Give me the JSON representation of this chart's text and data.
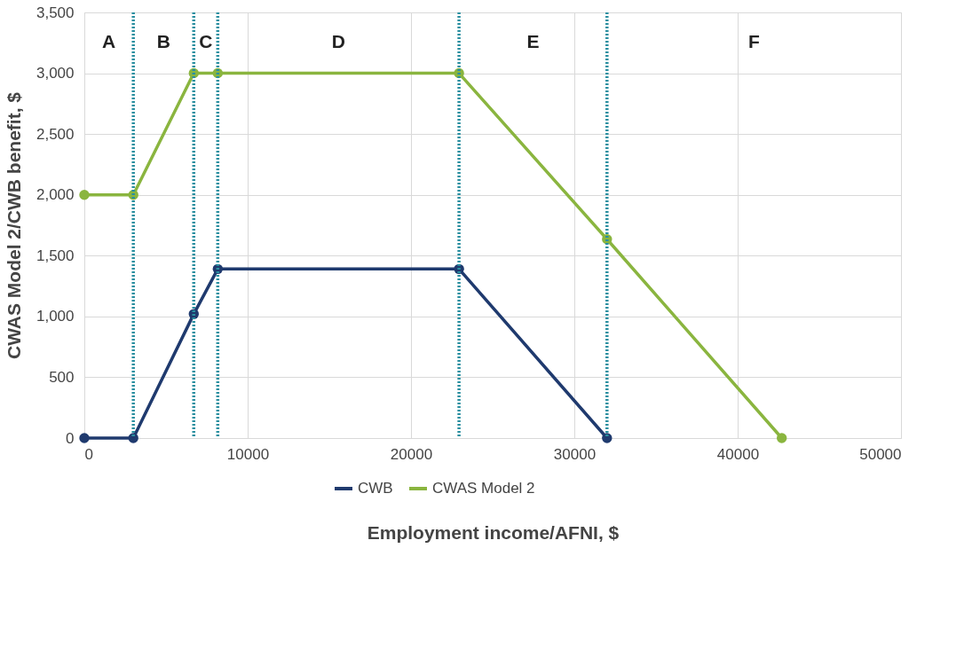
{
  "chart_data": {
    "type": "line",
    "xlabel": "Employment income/AFNI, $",
    "ylabel": "CWAS Model 2/CWB benefit, $",
    "series": [
      {
        "name": "CWB",
        "color": "#1f3a6e",
        "x": [
          0,
          3000,
          6700,
          8170,
          22940,
          32000
        ],
        "values": [
          0,
          0,
          1020,
          1390,
          1390,
          0
        ]
      },
      {
        "name": "CWAS Model 2",
        "color": "#8ab53f",
        "x": [
          0,
          3000,
          6700,
          8170,
          22940,
          32000,
          42700
        ],
        "values": [
          2000,
          2000,
          3000,
          3000,
          3000,
          1635,
          0
        ]
      }
    ],
    "xlim": [
      0,
      50000
    ],
    "xticks": [
      0,
      10000,
      20000,
      30000,
      40000,
      50000
    ],
    "ylim": [
      0,
      3500
    ],
    "yticks": [
      {
        "value": 0,
        "label": "0"
      },
      {
        "value": 500,
        "label": "500"
      },
      {
        "value": 1000,
        "label": "1,000"
      },
      {
        "value": 1500,
        "label": "1,500"
      },
      {
        "value": 2000,
        "label": "2,000"
      },
      {
        "value": 2500,
        "label": "2,500"
      },
      {
        "value": 3000,
        "label": "3,000"
      },
      {
        "value": 3500,
        "label": "3,500"
      }
    ],
    "ref_lines": [
      {
        "axis": "x",
        "value": 3000,
        "color": "#2a8fa0",
        "line_style": "dotted"
      },
      {
        "axis": "x",
        "value": 6700,
        "color": "#2a8fa0",
        "line_style": "dotted"
      },
      {
        "axis": "x",
        "value": 8170,
        "color": "#2a8fa0",
        "line_style": "dotted"
      },
      {
        "axis": "x",
        "value": 22940,
        "color": "#2a8fa0",
        "line_style": "dotted"
      },
      {
        "axis": "x",
        "value": 32000,
        "color": "#2a8fa0",
        "line_style": "dotted"
      }
    ],
    "annotations": [
      "A",
      "B",
      "C",
      "D",
      "E",
      "F"
    ],
    "grid": true,
    "legend": "bottom",
    "marker": "circle",
    "line_style": "solid"
  }
}
